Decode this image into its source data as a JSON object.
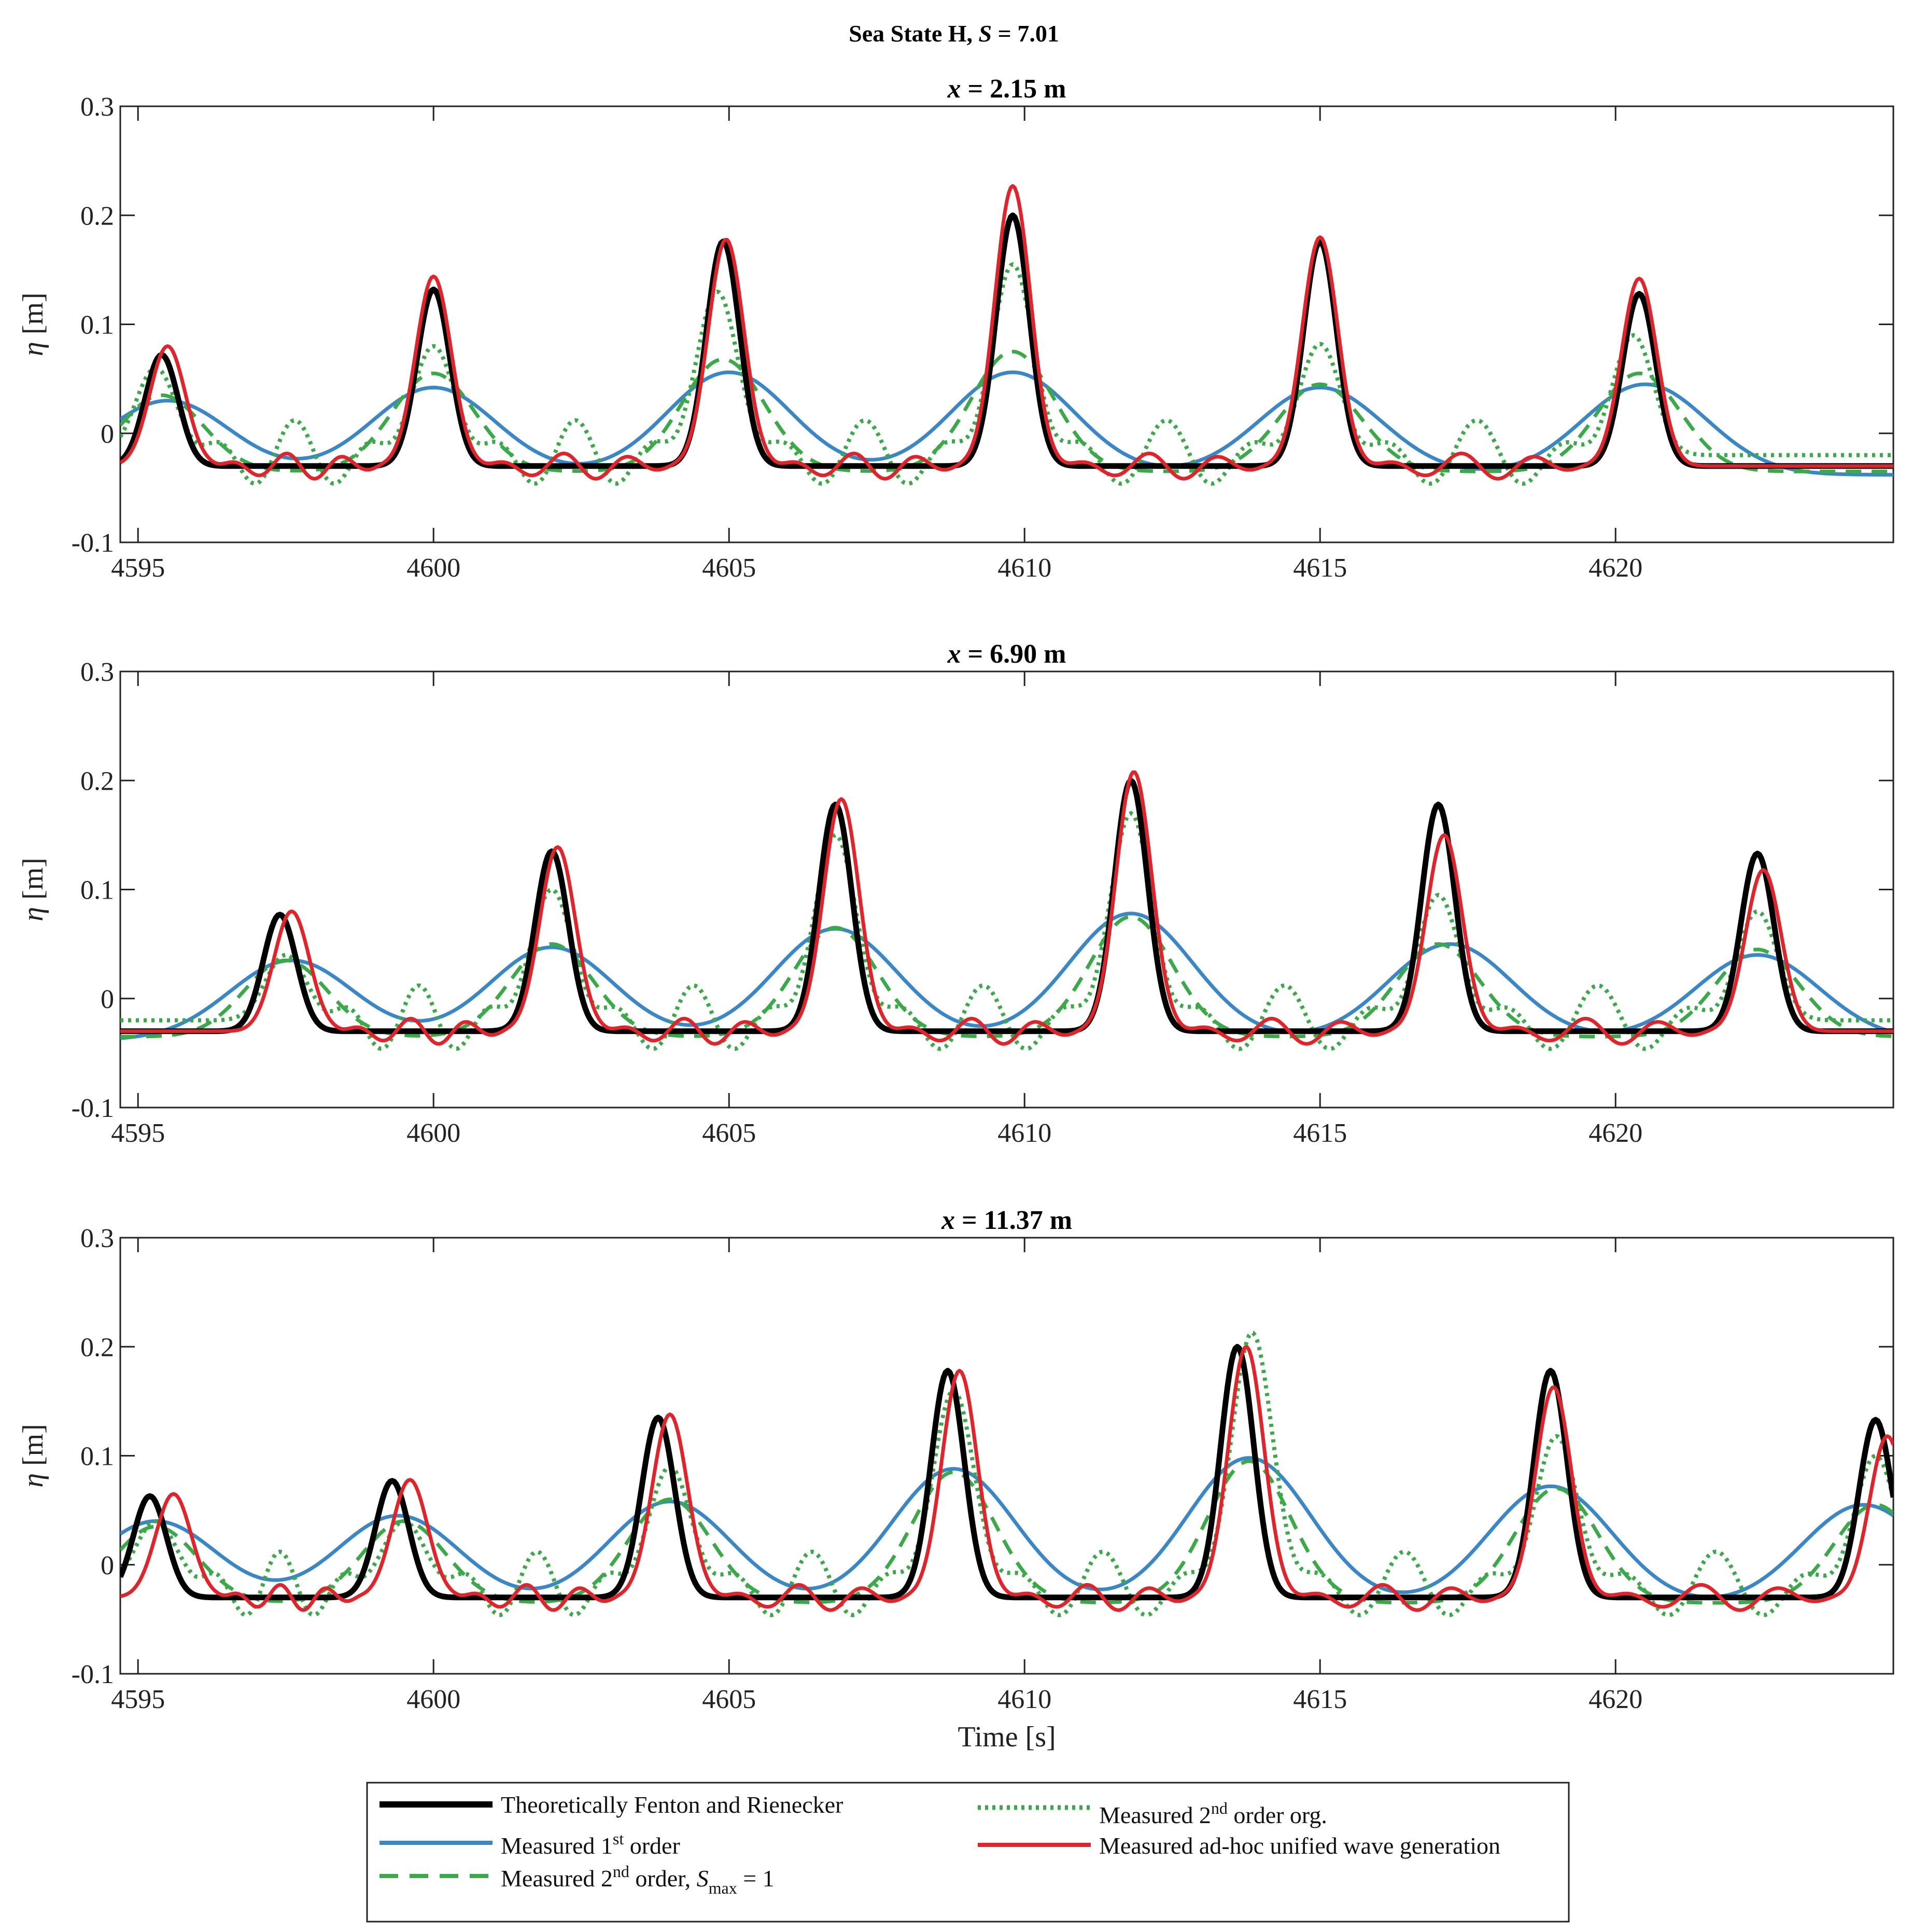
{
  "figure": {
    "title": "Sea State H, S = 7.01",
    "title_parts": {
      "prefix": "Sea State H, ",
      "italic": "S",
      "suffix": " = 7.01"
    }
  },
  "colors": {
    "theory": "#000000",
    "first_order": "#3a87c8",
    "second_order_smax": "#3aaa48",
    "second_order_org": "#3aaa48",
    "adhoc": "#e0242a"
  },
  "legend": {
    "theory": "Theoretically Fenton and Rienecker",
    "first_order": {
      "pre": "Measured 1",
      "sup": "st",
      "post": " order"
    },
    "second_order_smax": {
      "pre": "Measured 2",
      "sup": "nd",
      "mid": " order, ",
      "italic": "S",
      "sub": "max",
      "post": " = 1"
    },
    "second_order_org": {
      "pre": "Measured 2",
      "sup": "nd",
      "post": " order org."
    },
    "adhoc": "Measured ad-hoc unified wave generation"
  },
  "chart_data": [
    {
      "type": "line",
      "title": "x  = 2.15 m",
      "title_parts": {
        "italic": "x",
        "rest": "  = 2.15 m"
      },
      "xlabel": "",
      "ylabel": "η [m]",
      "xlim": [
        4594.7,
        4624.7
      ],
      "ylim": [
        -0.1,
        0.3
      ],
      "xticks": [
        4595,
        4600,
        4605,
        4610,
        4615,
        4620
      ],
      "yticks": [
        -0.1,
        0,
        0.1,
        0.2,
        0.3
      ],
      "ytick_labels": [
        "-0.1",
        "0",
        "0.1",
        "0.2",
        "0.3"
      ],
      "crests": {
        "theory": [
          [
            4595.4,
            0.072
          ],
          [
            4600.0,
            0.132
          ],
          [
            4604.9,
            0.176
          ],
          [
            4609.8,
            0.2
          ],
          [
            4615.0,
            0.176
          ],
          [
            4620.4,
            0.128
          ]
        ],
        "adhoc": [
          [
            4595.5,
            0.08
          ],
          [
            4600.0,
            0.144
          ],
          [
            4604.95,
            0.178
          ],
          [
            4609.8,
            0.227
          ],
          [
            4615.0,
            0.18
          ],
          [
            4620.4,
            0.142
          ]
        ],
        "second_order_org": [
          [
            4595.3,
            0.06
          ],
          [
            4600.0,
            0.08
          ],
          [
            4604.8,
            0.13
          ],
          [
            4609.8,
            0.155
          ],
          [
            4615.0,
            0.082
          ],
          [
            4620.3,
            0.09
          ]
        ],
        "second_order_smax": [
          [
            4595.4,
            0.035
          ],
          [
            4600.0,
            0.055
          ],
          [
            4604.9,
            0.068
          ],
          [
            4609.8,
            0.075
          ],
          [
            4615.0,
            0.045
          ],
          [
            4620.4,
            0.055
          ]
        ]
      },
      "first_order_swell": [
        [
          4595.5,
          0.03
        ],
        [
          4600.0,
          0.042
        ],
        [
          4605.0,
          0.056
        ],
        [
          4609.8,
          0.056
        ],
        [
          4615.0,
          0.042
        ],
        [
          4620.5,
          0.045
        ]
      ]
    },
    {
      "type": "line",
      "title": "x  = 6.90 m",
      "title_parts": {
        "italic": "x",
        "rest": "  = 6.90 m"
      },
      "xlabel": "",
      "ylabel": "η [m]",
      "xlim": [
        4594.7,
        4624.7
      ],
      "ylim": [
        -0.1,
        0.3
      ],
      "xticks": [
        4595,
        4600,
        4605,
        4610,
        4615,
        4620
      ],
      "yticks": [
        -0.1,
        0,
        0.1,
        0.2,
        0.3
      ],
      "ytick_labels": [
        "-0.1",
        "0",
        "0.1",
        "0.2",
        "0.3"
      ],
      "crests": {
        "theory": [
          [
            4597.4,
            0.077
          ],
          [
            4602.0,
            0.135
          ],
          [
            4606.8,
            0.178
          ],
          [
            4611.8,
            0.2
          ],
          [
            4617.0,
            0.178
          ],
          [
            4622.4,
            0.133
          ]
        ],
        "adhoc": [
          [
            4597.6,
            0.08
          ],
          [
            4602.1,
            0.139
          ],
          [
            4606.9,
            0.183
          ],
          [
            4611.85,
            0.208
          ],
          [
            4617.1,
            0.15
          ],
          [
            4622.5,
            0.118
          ]
        ],
        "second_order_org": [
          [
            4597.5,
            0.04
          ],
          [
            4602.0,
            0.1
          ],
          [
            4606.8,
            0.15
          ],
          [
            4611.8,
            0.17
          ],
          [
            4617.0,
            0.095
          ],
          [
            4622.4,
            0.08
          ]
        ],
        "second_order_smax": [
          [
            4597.5,
            0.035
          ],
          [
            4602.0,
            0.05
          ],
          [
            4606.8,
            0.065
          ],
          [
            4611.8,
            0.075
          ],
          [
            4617.0,
            0.05
          ],
          [
            4622.4,
            0.045
          ]
        ]
      },
      "first_order_swell": [
        [
          4597.6,
          0.035
        ],
        [
          4602.0,
          0.047
        ],
        [
          4606.8,
          0.064
        ],
        [
          4611.8,
          0.078
        ],
        [
          4617.2,
          0.05
        ],
        [
          4622.4,
          0.04
        ]
      ]
    },
    {
      "type": "line",
      "title": "x  = 11.37 m",
      "title_parts": {
        "italic": "x",
        "rest": "  = 11.37 m"
      },
      "xlabel": "Time [s]",
      "ylabel": "η [m]",
      "xlim": [
        4594.7,
        4624.7
      ],
      "ylim": [
        -0.1,
        0.3
      ],
      "xticks": [
        4595,
        4600,
        4605,
        4610,
        4615,
        4620
      ],
      "yticks": [
        -0.1,
        0,
        0.1,
        0.2,
        0.3
      ],
      "ytick_labels": [
        "-0.1",
        "0",
        "0.1",
        "0.2",
        "0.3"
      ],
      "crests": {
        "theory": [
          [
            4595.2,
            0.063
          ],
          [
            4599.3,
            0.077
          ],
          [
            4603.8,
            0.135
          ],
          [
            4608.7,
            0.178
          ],
          [
            4613.6,
            0.2
          ],
          [
            4618.9,
            0.178
          ],
          [
            4624.4,
            0.133
          ]
        ],
        "adhoc": [
          [
            4595.6,
            0.065
          ],
          [
            4599.6,
            0.078
          ],
          [
            4604.0,
            0.138
          ],
          [
            4608.9,
            0.178
          ],
          [
            4613.75,
            0.2
          ],
          [
            4618.95,
            0.163
          ],
          [
            4624.6,
            0.118
          ]
        ],
        "second_order_org": [
          [
            4595.3,
            0.04
          ],
          [
            4599.5,
            0.04
          ],
          [
            4604.0,
            0.09
          ],
          [
            4608.8,
            0.16
          ],
          [
            4613.85,
            0.213
          ],
          [
            4619.0,
            0.118
          ],
          [
            4624.4,
            0.1
          ]
        ],
        "second_order_smax": [
          [
            4595.3,
            0.035
          ],
          [
            4599.5,
            0.04
          ],
          [
            4604.0,
            0.06
          ],
          [
            4608.8,
            0.085
          ],
          [
            4613.8,
            0.095
          ],
          [
            4619.0,
            0.07
          ],
          [
            4624.4,
            0.055
          ]
        ]
      },
      "first_order_swell": [
        [
          4595.3,
          0.04
        ],
        [
          4599.4,
          0.045
        ],
        [
          4604.0,
          0.058
        ],
        [
          4608.8,
          0.088
        ],
        [
          4613.8,
          0.098
        ],
        [
          4618.9,
          0.072
        ],
        [
          4624.2,
          0.055
        ]
      ]
    }
  ]
}
